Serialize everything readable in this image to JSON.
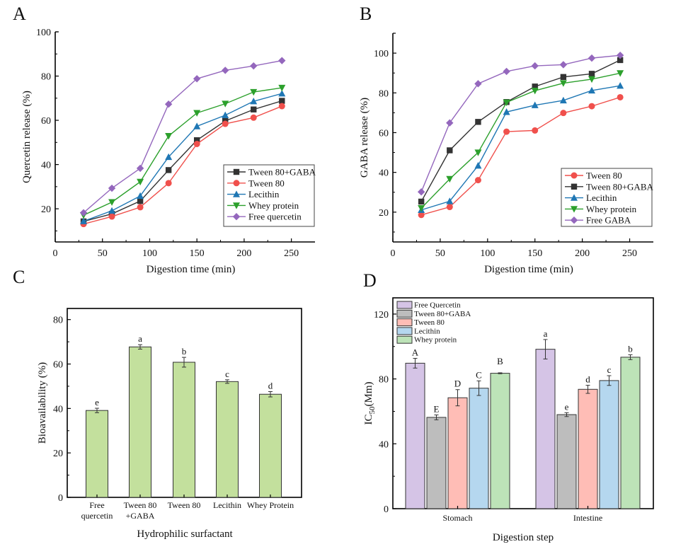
{
  "figure": {
    "panels": [
      "A",
      "B",
      "C",
      "D"
    ]
  },
  "chart_data": [
    {
      "panel": "A",
      "type": "line",
      "title": "",
      "xlabel": "Digestion time (min)",
      "ylabel": "Quercetin release (%)",
      "xlim": [
        0,
        275
      ],
      "ylim": [
        5,
        100
      ],
      "xticks": [
        0,
        50,
        100,
        150,
        200,
        250
      ],
      "yticks": [
        20,
        40,
        60,
        80,
        100
      ],
      "grid": false,
      "legend_position": "bottom-right",
      "x": [
        30,
        60,
        90,
        120,
        150,
        180,
        210,
        240
      ],
      "series": [
        {
          "name": "Tween 80+GABA",
          "color": "#333333",
          "marker": "square",
          "values": [
            14.3,
            17.7,
            23.5,
            37.5,
            51.0,
            59.7,
            64.9,
            68.8
          ]
        },
        {
          "name": "Tween 80",
          "color": "#f0504c",
          "marker": "circle",
          "values": [
            13.1,
            16.5,
            20.7,
            31.6,
            49.3,
            58.4,
            61.2,
            66.4
          ]
        },
        {
          "name": "Lecithin",
          "color": "#1f77b4",
          "marker": "triangle-up",
          "values": [
            14.4,
            19.1,
            25.8,
            43.4,
            57.3,
            62.3,
            68.6,
            72.1
          ]
        },
        {
          "name": "Whey protein",
          "color": "#2ca02c",
          "marker": "triangle-down",
          "values": [
            17.1,
            23.0,
            32.2,
            52.9,
            63.3,
            67.5,
            72.8,
            74.7
          ]
        },
        {
          "name": "Free quercetin",
          "color": "#9467bd",
          "marker": "diamond",
          "values": [
            18.2,
            29.3,
            38.3,
            67.3,
            78.8,
            82.6,
            84.6,
            87.0
          ]
        }
      ]
    },
    {
      "panel": "B",
      "type": "line",
      "title": "",
      "xlabel": "Digestion time (min)",
      "ylabel": "GABA release (%)",
      "xlim": [
        0,
        275
      ],
      "ylim": [
        5,
        110
      ],
      "xticks": [
        0,
        50,
        100,
        150,
        200,
        250
      ],
      "yticks": [
        20,
        40,
        60,
        80,
        100
      ],
      "grid": false,
      "legend_position": "bottom-right",
      "x": [
        30,
        60,
        90,
        120,
        150,
        180,
        210,
        240
      ],
      "series": [
        {
          "name": "Tween 80",
          "color": "#f0504c",
          "marker": "circle",
          "values": [
            18.6,
            22.6,
            36.1,
            60.5,
            61.1,
            69.9,
            73.3,
            77.8
          ]
        },
        {
          "name": "Tween 80+GABA",
          "color": "#333333",
          "marker": "square",
          "values": [
            25.3,
            51.1,
            65.4,
            75.4,
            83.2,
            88.0,
            89.6,
            96.5
          ]
        },
        {
          "name": "Lecithin",
          "color": "#1f77b4",
          "marker": "triangle-up",
          "values": [
            21.1,
            25.5,
            43.4,
            70.4,
            73.8,
            76.2,
            81.2,
            83.6
          ]
        },
        {
          "name": "Whey protein",
          "color": "#2ca02c",
          "marker": "triangle-down",
          "values": [
            22.0,
            36.7,
            50.0,
            75.2,
            81.1,
            84.9,
            86.9,
            89.9
          ]
        },
        {
          "name": "Free GABA",
          "color": "#9467bd",
          "marker": "diamond",
          "values": [
            30.2,
            64.9,
            84.6,
            90.8,
            93.6,
            94.2,
            97.5,
            98.9
          ]
        }
      ]
    },
    {
      "panel": "C",
      "type": "bar",
      "title": "",
      "xlabel": "Hydrophilic surfactant",
      "ylabel": "Bioavailability (%)",
      "ylim": [
        0,
        85
      ],
      "yticks": [
        0,
        20,
        40,
        60,
        80
      ],
      "grid": false,
      "bar_color": "#c3e09d",
      "categories": [
        [
          "Free",
          "quercetin"
        ],
        [
          "Tween 80",
          "+GABA"
        ],
        [
          "Tween 80"
        ],
        [
          "Lecithin"
        ],
        [
          "Whey Protein"
        ]
      ],
      "values": [
        39.1,
        67.7,
        60.8,
        52.1,
        46.4
      ],
      "errors": [
        1.0,
        1.0,
        2.2,
        0.8,
        1.2
      ],
      "significance": [
        "e",
        "a",
        "b",
        "c",
        "d"
      ]
    },
    {
      "panel": "D",
      "type": "bar",
      "title": "",
      "xlabel": "Digestion step",
      "ylabel_main": "IC",
      "ylabel_sub": "50",
      "ylabel_tail": "(Mm)",
      "ylim": [
        0,
        130
      ],
      "yticks": [
        0,
        40,
        80,
        120
      ],
      "grid": false,
      "legend_position": "top-left",
      "categories": [
        "Stomach",
        "Intestine"
      ],
      "series": [
        {
          "name": "Free Quercetin",
          "color": "#d5c4e6",
          "values": [
            89.7,
            98.3
          ],
          "errors": [
            3.0,
            6.0
          ],
          "significance": [
            "A",
            "a"
          ]
        },
        {
          "name": "Tween 80+GABA",
          "color": "#bdbdbd",
          "values": [
            56.3,
            58.0
          ],
          "errors": [
            1.5,
            1.2
          ],
          "significance": [
            "E",
            "e"
          ]
        },
        {
          "name": "Tween 80",
          "color": "#ffbdb6",
          "values": [
            68.4,
            73.6
          ],
          "errors": [
            5.0,
            2.5
          ],
          "significance": [
            "D",
            "d"
          ]
        },
        {
          "name": "Lecithin",
          "color": "#b5d7ef",
          "values": [
            74.3,
            79.0
          ],
          "errors": [
            4.5,
            3.0
          ],
          "significance": [
            "C",
            "c"
          ]
        },
        {
          "name": "Whey protein",
          "color": "#bde3b8",
          "values": [
            83.5,
            93.4
          ],
          "errors": [
            0.3,
            1.5
          ],
          "significance": [
            "B",
            "b"
          ]
        }
      ]
    }
  ]
}
